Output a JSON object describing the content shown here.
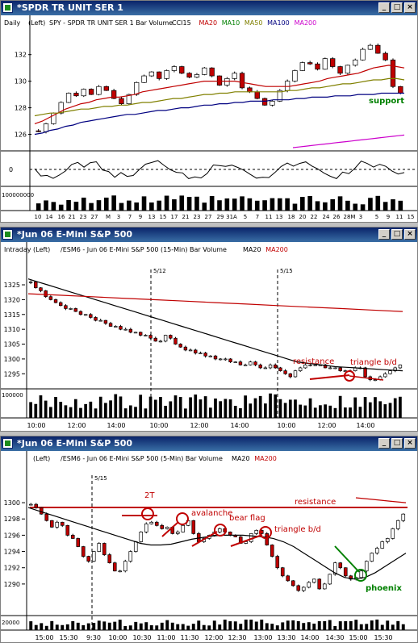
{
  "windows": [
    {
      "title": "*SPDR TR UNIT SER 1",
      "header": {
        "prefix": "Daily",
        "left": "(Left)",
        "desc": "SPY - SPDR TR UNIT SER 1  Bar  Volume",
        "inds": [
          {
            "t": "CCI15",
            "c": "#000000"
          },
          {
            "t": "MA20",
            "c": "#c00000"
          },
          {
            "t": "MA10",
            "c": "#008000"
          },
          {
            "t": "MA50",
            "c": "#808000"
          },
          {
            "t": "MA100",
            "c": "#000080"
          },
          {
            "t": "MA200",
            "c": "#cc00cc"
          }
        ]
      },
      "x_ticks": [
        "10",
        "14",
        "16",
        "21",
        "23",
        "27",
        "M",
        "3",
        "7",
        "9",
        "13",
        "15",
        "17",
        "21",
        "23",
        "27",
        "29",
        "31A",
        "5",
        "7",
        "11",
        "13",
        "18",
        "20",
        "22",
        "24",
        "26",
        "28M",
        "3",
        "5",
        "9",
        "11",
        "15"
      ],
      "y_ticks": [
        "132",
        "130",
        "128",
        "126"
      ],
      "osc_tick": "0",
      "vol_tick": "100000000",
      "annotations": [
        {
          "text": "support",
          "color": "#008000"
        }
      ]
    },
    {
      "title": "*Jun 06  E-Mini S&P 500",
      "header": {
        "prefix": "Intraday",
        "left": "(Left)",
        "desc": "/ESM6 - Jun 06  E-Mini S&P 500  (15-Min)  Bar  Volume",
        "inds": [
          {
            "t": "MA20",
            "c": "#000000"
          },
          {
            "t": "MA200",
            "c": "#c00000"
          }
        ]
      },
      "x_ticks": [
        "10:00",
        "12:00",
        "14:00",
        "10:00",
        "12:00",
        "14:00",
        "10:00",
        "12:00",
        "14:00"
      ],
      "y_ticks": [
        "1325",
        "1320",
        "1315",
        "1310",
        "1305",
        "1300",
        "1295"
      ],
      "session_labels": [
        "5/12",
        "5/15"
      ],
      "vol_tick": "100000",
      "annotations": [
        {
          "text": "resistance",
          "color": "#c00000"
        },
        {
          "text": "triangle b/d",
          "color": "#c00000"
        }
      ]
    },
    {
      "title": "*Jun 06  E-Mini S&P 500",
      "header": {
        "prefix": "",
        "left": "(Left)",
        "desc": "/ESM6 - Jun 06  E-Mini S&P 500  (5-Min)  Bar  Volume",
        "inds": [
          {
            "t": "MA20",
            "c": "#000000"
          },
          {
            "t": "MA200",
            "c": "#c00000"
          }
        ]
      },
      "x_ticks": [
        "15:00",
        "15:30",
        "9:30",
        "10:00",
        "10:30",
        "11:00",
        "11:30",
        "12:00",
        "12:30",
        "13:00",
        "13:30",
        "14:00",
        "14:30",
        "15:00",
        "15:30"
      ],
      "y_ticks": [
        "1300",
        "1298",
        "1296",
        "1294",
        "1292",
        "1290"
      ],
      "session_labels": [
        "5/15"
      ],
      "vol_tick": "20000",
      "annotations": [
        {
          "text": "resistance",
          "color": "#c00000"
        },
        {
          "text": "2T",
          "color": "#c00000"
        },
        {
          "text": "avalanche",
          "color": "#c00000"
        },
        {
          "text": "bear flag",
          "color": "#c00000"
        },
        {
          "text": "triangle b/d",
          "color": "#c00000"
        },
        {
          "text": "phoenix",
          "color": "#008000"
        }
      ]
    }
  ],
  "chart_data": [
    {
      "type": "bar",
      "title": "SPY - SPDR TR UNIT SER 1",
      "ylim": [
        125,
        133.5
      ],
      "series": [
        {
          "name": "SPY",
          "closes": [
            126.2,
            126.8,
            127.6,
            128.4,
            129.1,
            128.9,
            129.4,
            129.0,
            129.6,
            129.3,
            128.7,
            128.3,
            129.0,
            129.9,
            130.4,
            130.7,
            130.2,
            130.8,
            131.1,
            130.6,
            130.3,
            130.5,
            131.0,
            130.4,
            129.7,
            130.2,
            130.6,
            129.5,
            129.2,
            128.7,
            128.2,
            128.5,
            129.3,
            130.0,
            130.8,
            131.4,
            131.3,
            130.9,
            131.7,
            131.1,
            130.6,
            131.2,
            131.6,
            132.4,
            132.7,
            132.1,
            131.6,
            129.6,
            129.1
          ]
        },
        {
          "name": "MA20",
          "values": [
            126.8,
            127.0,
            127.3,
            127.6,
            127.9,
            128.1,
            128.3,
            128.4,
            128.6,
            128.7,
            128.8,
            128.8,
            128.9,
            129.0,
            129.2,
            129.3,
            129.4,
            129.5,
            129.6,
            129.7,
            129.8,
            129.9,
            130.0,
            130.0,
            130.0,
            130.0,
            130.0,
            129.9,
            129.8,
            129.7,
            129.6,
            129.6,
            129.6,
            129.6,
            129.7,
            129.8,
            129.9,
            130.0,
            130.2,
            130.3,
            130.4,
            130.5,
            130.6,
            130.8,
            131.0,
            131.1,
            131.2,
            131.1,
            131.0
          ]
        },
        {
          "name": "MA50",
          "values": [
            127.4,
            127.5,
            127.6,
            127.6,
            127.7,
            127.8,
            127.9,
            127.9,
            128.0,
            128.1,
            128.1,
            128.2,
            128.2,
            128.3,
            128.4,
            128.4,
            128.5,
            128.6,
            128.7,
            128.7,
            128.8,
            128.9,
            129.0,
            129.0,
            129.1,
            129.1,
            129.2,
            129.2,
            129.2,
            129.2,
            129.2,
            129.2,
            129.2,
            129.3,
            129.3,
            129.4,
            129.5,
            129.5,
            129.6,
            129.7,
            129.8,
            129.8,
            129.9,
            130.0,
            130.1,
            130.1,
            130.2,
            130.2,
            130.1
          ]
        },
        {
          "name": "MA100",
          "values": [
            126.0,
            126.1,
            126.3,
            126.4,
            126.6,
            126.7,
            126.9,
            127.0,
            127.1,
            127.2,
            127.3,
            127.4,
            127.5,
            127.5,
            127.6,
            127.7,
            127.8,
            127.8,
            127.9,
            128.0,
            128.0,
            128.1,
            128.2,
            128.2,
            128.3,
            128.3,
            128.4,
            128.4,
            128.5,
            128.5,
            128.5,
            128.6,
            128.6,
            128.6,
            128.7,
            128.7,
            128.8,
            128.8,
            128.8,
            128.9,
            128.9,
            128.9,
            129.0,
            129.0,
            129.0,
            129.1,
            129.1,
            129.1,
            129.1
          ]
        },
        {
          "name": "MA200",
          "values": [
            125.0,
            125.05,
            125.1,
            125.15,
            125.2,
            125.25,
            125.3,
            125.35,
            125.4,
            125.45,
            125.5,
            125.55,
            125.6,
            125.65,
            125.7,
            125.75,
            125.8,
            125.85,
            125.9,
            125.95
          ]
        }
      ]
    },
    {
      "type": "bar",
      "title": "/ESM6 - Jun 06 E-Mini S&P 500 (15-Min)",
      "ylim": [
        1291,
        1328
      ],
      "series": [
        {
          "name": "ESM6 15-min",
          "closes": [
            1326,
            1324,
            1323,
            1321,
            1320,
            1319,
            1318,
            1317,
            1317,
            1316,
            1315,
            1315,
            1314,
            1313,
            1313,
            1312,
            1311,
            1311,
            1310,
            1310,
            1309,
            1309,
            1308,
            1308,
            1307,
            1306,
            1306,
            1308,
            1307,
            1305,
            1304,
            1303,
            1303,
            1302,
            1302,
            1301,
            1301,
            1300,
            1300,
            1300,
            1299,
            1299,
            1298,
            1298,
            1299,
            1298,
            1297,
            1297,
            1298,
            1297,
            1296,
            1295,
            1294,
            1296,
            1297,
            1298,
            1298,
            1298,
            1298,
            1297,
            1297,
            1297,
            1296,
            1296,
            1296,
            1297,
            1297,
            1294,
            1293,
            1293,
            1294,
            1295,
            1296,
            1297,
            1298
          ]
        },
        {
          "name": "MA20",
          "values": [
            1327,
            1326,
            1325,
            1324,
            1323,
            1322,
            1321,
            1320,
            1319,
            1318,
            1317,
            1316,
            1315,
            1314,
            1313,
            1312,
            1311,
            1310,
            1309,
            1308,
            1307,
            1306,
            1305,
            1304,
            1303,
            1302,
            1301,
            1300,
            1299,
            1298.6,
            1298.2,
            1297.8,
            1297.4,
            1297.2,
            1297.0,
            1296.8,
            1296.6,
            1296.4,
            1296.2,
            1296.0
          ]
        },
        {
          "name": "MA200",
          "values": [
            1322,
            1321.5,
            1321,
            1320.5,
            1320,
            1319.5,
            1319,
            1318.5,
            1318,
            1317.5,
            1317,
            1316.5,
            1316
          ]
        }
      ]
    },
    {
      "type": "bar",
      "title": "/ESM6 - Jun 06 E-Mini S&P 500 (5-Min)",
      "ylim": [
        1288.5,
        1301
      ],
      "series": [
        {
          "name": "ESM6 5-min",
          "closes": [
            1299.8,
            1299.4,
            1298.6,
            1297.8,
            1297.0,
            1297.6,
            1297.2,
            1296.0,
            1295.6,
            1294.6,
            1293.4,
            1292.8,
            1294.0,
            1295.0,
            1293.6,
            1292.6,
            1291.6,
            1291.6,
            1292.8,
            1294.0,
            1295.2,
            1296.4,
            1297.4,
            1297.6,
            1297.2,
            1296.8,
            1297.0,
            1296.2,
            1296.4,
            1297.2,
            1297.8,
            1296.2,
            1295.2,
            1295.6,
            1296.0,
            1296.4,
            1296.8,
            1296.4,
            1296.0,
            1295.8,
            1295.0,
            1295.2,
            1296.2,
            1296.6,
            1296.2,
            1294.8,
            1293.4,
            1292.0,
            1291.0,
            1290.4,
            1289.8,
            1289.2,
            1289.6,
            1290.2,
            1290.6,
            1289.4,
            1290.0,
            1291.2,
            1292.6,
            1292.0,
            1291.0,
            1290.6,
            1290.8,
            1291.6,
            1292.8,
            1293.8,
            1294.4,
            1295.2,
            1295.6,
            1296.8,
            1297.8,
            1298.6
          ]
        },
        {
          "name": "MA20",
          "values": [
            1299.4,
            1299.0,
            1298.6,
            1298.2,
            1297.8,
            1297.4,
            1297.0,
            1296.6,
            1296.2,
            1295.8,
            1295.4,
            1295.0,
            1294.8,
            1294.8,
            1294.9,
            1295.2,
            1295.5,
            1295.7,
            1295.9,
            1296.0,
            1296.0,
            1296.0,
            1295.9,
            1295.8,
            1295.6,
            1295.2,
            1294.6,
            1293.8,
            1293.0,
            1292.2,
            1291.4,
            1290.8,
            1290.6,
            1290.8,
            1291.4,
            1292.2,
            1293.0,
            1293.8
          ]
        },
        {
          "name": "MA200",
          "values": [
            1300.6,
            1300.4,
            1300.2,
            1300.0
          ]
        }
      ]
    }
  ]
}
